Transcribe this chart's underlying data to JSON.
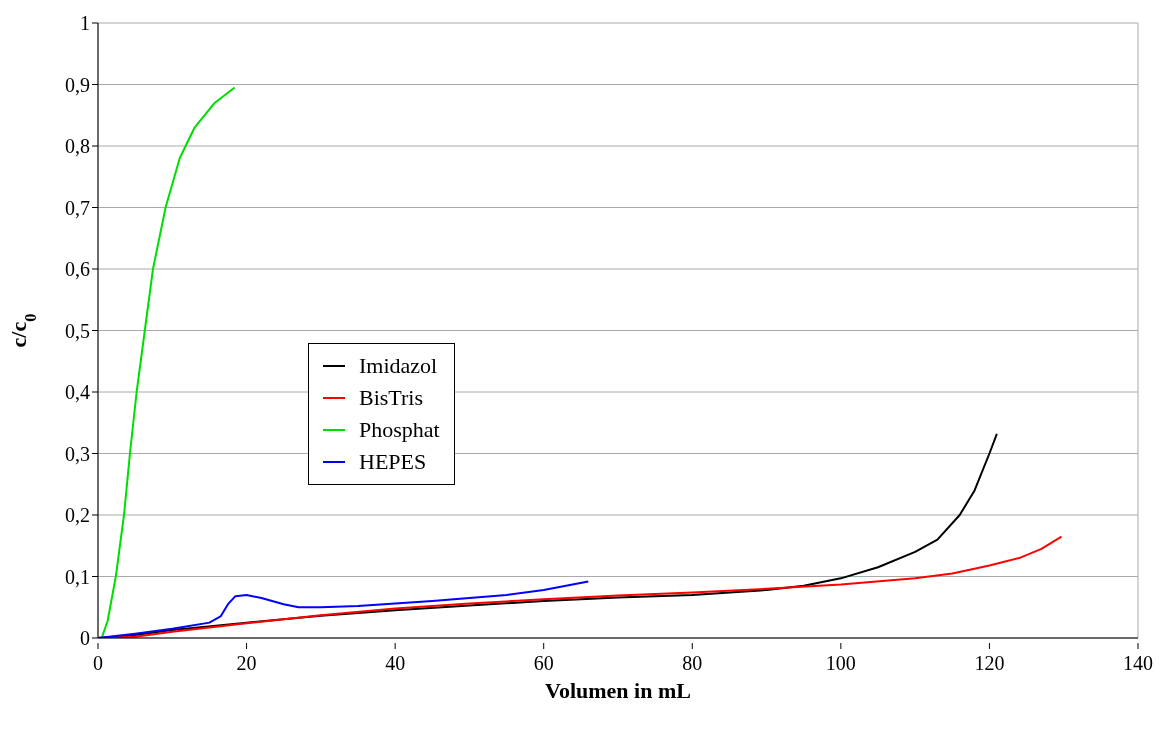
{
  "chart_data": {
    "type": "line",
    "xlabel": "Volumen in mL",
    "ylabel": "c/c$_{0}$",
    "xlim": [
      0,
      140
    ],
    "xticks": [
      0,
      20,
      40,
      60,
      80,
      100,
      120,
      140
    ],
    "ylim": [
      0,
      1
    ],
    "yticks": [
      {
        "value": 0,
        "label": "0"
      },
      {
        "value": 0.1,
        "label": "0,1"
      },
      {
        "value": 0.2,
        "label": "0,2"
      },
      {
        "value": 0.3,
        "label": "0,3"
      },
      {
        "value": 0.4,
        "label": "0,4"
      },
      {
        "value": 0.5,
        "label": "0,5"
      },
      {
        "value": 0.6,
        "label": "0,6"
      },
      {
        "value": 0.7,
        "label": "0,7"
      },
      {
        "value": 0.8,
        "label": "0,8"
      },
      {
        "value": 0.9,
        "label": "0,9"
      },
      {
        "value": 1,
        "label": "1"
      }
    ],
    "grid": true,
    "legend": "left",
    "marker": "none",
    "line_style": "solid",
    "series": [
      {
        "name": "Imidazol",
        "color": "#000000",
        "x": [
          0,
          5,
          10,
          20,
          30,
          40,
          50,
          60,
          70,
          80,
          90,
          95,
          100,
          105,
          110,
          113,
          116,
          118,
          120,
          121
        ],
        "values": [
          0,
          0.005,
          0.013,
          0.025,
          0.036,
          0.045,
          0.053,
          0.06,
          0.066,
          0.07,
          0.078,
          0.085,
          0.097,
          0.115,
          0.14,
          0.16,
          0.2,
          0.24,
          0.3,
          0.332
        ]
      },
      {
        "name": "BisTris",
        "color": "#ff0000",
        "x": [
          0,
          5,
          10,
          20,
          30,
          40,
          50,
          60,
          70,
          80,
          90,
          100,
          110,
          115,
          120,
          124,
          127,
          129.7
        ],
        "values": [
          0,
          0.002,
          0.01,
          0.024,
          0.037,
          0.048,
          0.056,
          0.063,
          0.069,
          0.074,
          0.08,
          0.087,
          0.097,
          0.105,
          0.118,
          0.13,
          0.145,
          0.165
        ]
      },
      {
        "name": "Phosphat",
        "color": "#00dd00",
        "x": [
          0.5,
          1.3,
          2.4,
          3.5,
          4.3,
          5.2,
          6.3,
          7.4,
          9.1,
          11,
          13,
          15.7,
          18.4
        ],
        "values": [
          0,
          0.028,
          0.1,
          0.2,
          0.3,
          0.4,
          0.5,
          0.6,
          0.7,
          0.78,
          0.83,
          0.87,
          0.895
        ]
      },
      {
        "name": "HEPES",
        "color": "#0000ff",
        "x": [
          0,
          5,
          10,
          15,
          16.5,
          17.5,
          18.5,
          20,
          22,
          25,
          27,
          30,
          35,
          40,
          45,
          50,
          55,
          60,
          63,
          66
        ],
        "values": [
          0,
          0.007,
          0.015,
          0.025,
          0.035,
          0.055,
          0.068,
          0.07,
          0.065,
          0.055,
          0.05,
          0.05,
          0.052,
          0.056,
          0.06,
          0.065,
          0.07,
          0.078,
          0.085,
          0.092
        ]
      }
    ]
  }
}
